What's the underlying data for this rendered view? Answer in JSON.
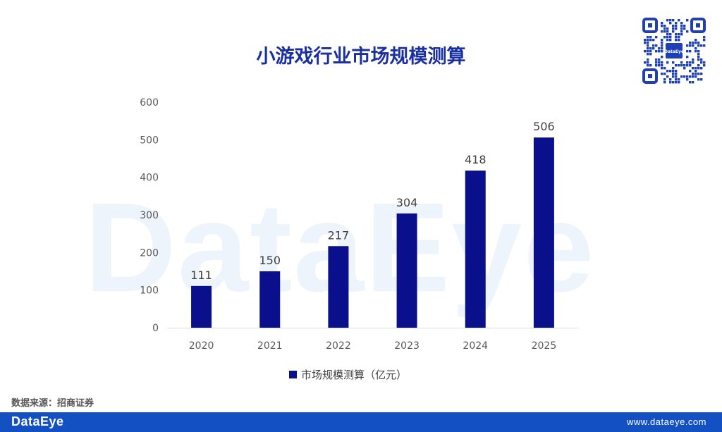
{
  "watermark": {
    "text": "DataEye"
  },
  "qr_badge": {
    "text": "DataEye"
  },
  "source": {
    "text": "数据来源：招商证券"
  },
  "footer": {
    "logo": "DataEye",
    "url": "www.dataeye.com"
  },
  "colors": {
    "bar": "#0a0f8c",
    "title": "#1a2fa0",
    "footer": "#1351c3",
    "watermark": "#eef4fb"
  },
  "chart_data": {
    "type": "bar",
    "title": "小游戏行业市场规模测算",
    "categories": [
      "2020",
      "2021",
      "2022",
      "2023",
      "2024",
      "2025"
    ],
    "series": [
      {
        "name": "市场规模测算（亿元）",
        "values": [
          111,
          150,
          217,
          304,
          418,
          506
        ]
      }
    ],
    "ylim": [
      0,
      600
    ],
    "yticks": [
      0,
      100,
      200,
      300,
      400,
      500,
      600
    ],
    "data_labels": true,
    "grid": false,
    "legend": "bottom-center"
  }
}
